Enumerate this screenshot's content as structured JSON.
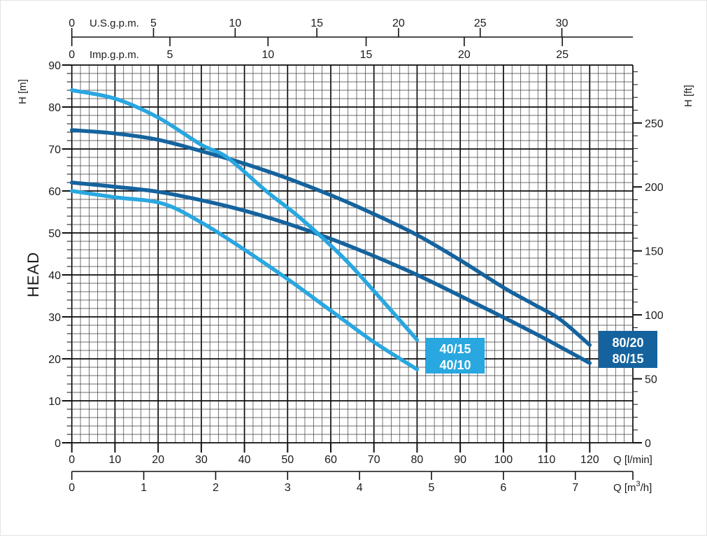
{
  "labels": {
    "head_axis_title": "HEAD",
    "h_m_unit": "H [m]",
    "h_ft_unit": "H [ft]",
    "us_gpm_unit": "U.S.g.p.m.",
    "imp_gpm_unit": "Imp.g.p.m.",
    "q_lmin_unit": "Q [l/min]",
    "q_m3h_parts": [
      "Q [m",
      "3",
      "/h]"
    ]
  },
  "legend": {
    "light": {
      "labels": [
        "40/15",
        "40/10"
      ],
      "color": "#29a7e0"
    },
    "dark": {
      "labels": [
        "80/20",
        "80/15"
      ],
      "color": "#15639e"
    }
  },
  "chart_data": {
    "type": "line",
    "title": "",
    "xlabel": "Q [l/min]",
    "ylabel": "HEAD H [m]",
    "x_axis_lmin": {
      "range": [
        0,
        130
      ],
      "minor_step": 2,
      "ticks": [
        0,
        10,
        20,
        30,
        40,
        50,
        60,
        70,
        80,
        90,
        100,
        110,
        120
      ]
    },
    "x_axis_m3h": {
      "ticks": [
        0,
        1,
        2,
        3,
        4,
        5,
        6,
        7
      ]
    },
    "x_axis_usgpm": {
      "ticks": [
        0,
        5,
        10,
        15,
        20,
        25,
        30
      ]
    },
    "x_axis_impgpm": {
      "ticks": [
        0,
        5,
        10,
        15,
        20,
        25
      ]
    },
    "y_axis_m": {
      "range": [
        0,
        90
      ],
      "minor_step": 2,
      "ticks": [
        0,
        10,
        20,
        30,
        40,
        50,
        60,
        70,
        80,
        90
      ]
    },
    "y_axis_ft": {
      "ticks": [
        0,
        50,
        100,
        150,
        200,
        250
      ]
    },
    "grid": true,
    "legend_position": "on-plot",
    "series": [
      {
        "name": "80/20",
        "color": "#15639e",
        "x": [
          0,
          10,
          20,
          30,
          40,
          50,
          60,
          70,
          80,
          90,
          100,
          107,
          113,
          120
        ],
        "y": [
          74.5,
          73.7,
          72.2,
          69.5,
          66.5,
          63,
          59,
          54.5,
          49.5,
          43.5,
          37,
          33,
          29.5,
          23.3
        ]
      },
      {
        "name": "80/15",
        "color": "#15639e",
        "x": [
          0,
          10,
          20,
          30,
          40,
          50,
          60,
          70,
          80,
          90,
          100,
          110,
          120
        ],
        "y": [
          62,
          61,
          59.8,
          57.8,
          55.3,
          52.2,
          48.6,
          44.5,
          40,
          35,
          29.9,
          24.6,
          19
        ]
      },
      {
        "name": "40/15",
        "color": "#29a7e0",
        "x": [
          0,
          10,
          20,
          30,
          36,
          45,
          53,
          63,
          71,
          80
        ],
        "y": [
          84,
          82,
          77.5,
          71,
          68,
          60,
          53.5,
          44,
          35,
          24.5
        ]
      },
      {
        "name": "40/10",
        "color": "#29a7e0",
        "x": [
          0,
          10,
          21,
          30,
          40,
          50,
          60,
          70,
          80
        ],
        "y": [
          60,
          58.5,
          57,
          52.5,
          46,
          39,
          31.5,
          24,
          17.5
        ]
      }
    ]
  }
}
